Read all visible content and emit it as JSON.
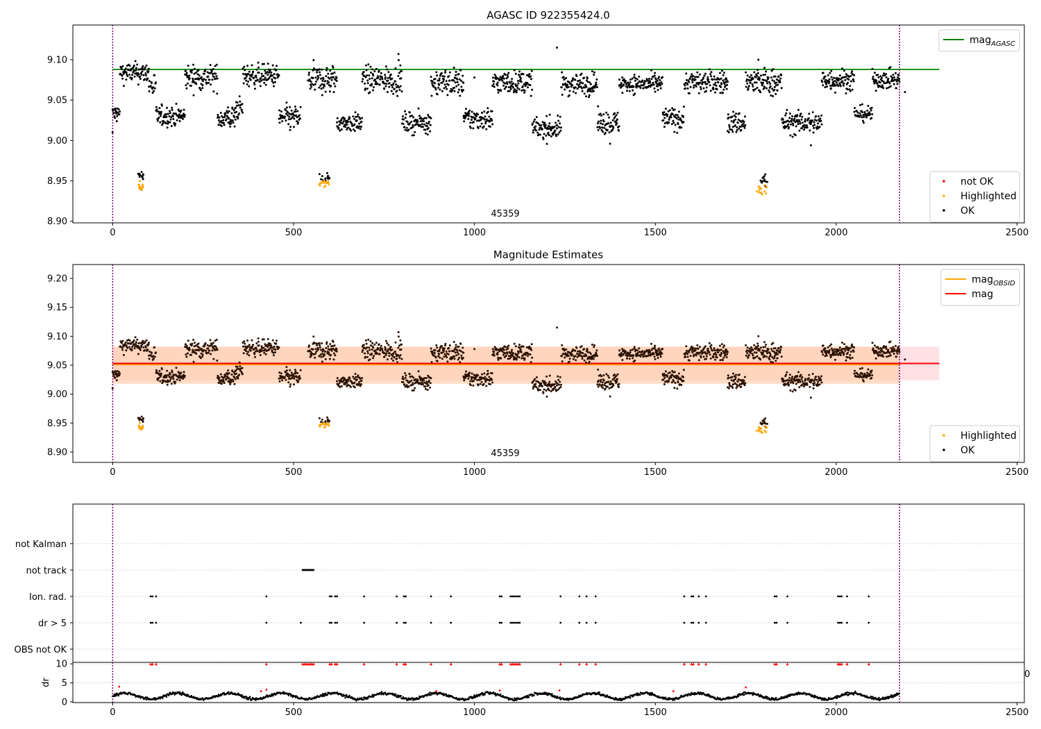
{
  "figure": {
    "panel1_title": "AGASC ID 922355424.0",
    "panel2_title": "Magnitude Estimates",
    "obsid_label": "45359"
  },
  "colors": {
    "ok": "#000000",
    "highlighted": "#ffa500",
    "not_ok": "#ff0000",
    "mag_agasc_line": "#008000",
    "mag_obsid_line": "#ffa500",
    "mag_line": "#ff0000",
    "band_mag": "#ffd6dc",
    "band_obsid": "#ffd2b0",
    "boundary": "#800080",
    "grid": "#b0b0b0"
  },
  "chart_data": [
    {
      "type": "scatter",
      "title": "AGASC ID 922355424.0",
      "xlim": [
        -110,
        2520
      ],
      "ylim": [
        8.898,
        9.143
      ],
      "xticks": [
        0,
        500,
        1000,
        1500,
        2000,
        2500
      ],
      "yticks": [
        8.9,
        8.95,
        9.0,
        9.05,
        9.1
      ],
      "ytick_labels": [
        "8.90",
        "8.95",
        "9.00",
        "9.05",
        "9.10"
      ],
      "hlines": [
        {
          "name": "mag_AGASC",
          "y": 9.088,
          "x": [
            0,
            2285
          ],
          "color": "#008000"
        }
      ],
      "vlines": [
        0,
        2175
      ],
      "annotation": {
        "text": "45359",
        "x": 1090,
        "y": 8.906
      },
      "legend_top": {
        "position": "upper right",
        "entries": [
          {
            "label": "mag",
            "sub": "AGASC",
            "kind": "line",
            "color": "#008000"
          }
        ]
      },
      "legend_bottom": {
        "position": "lower right",
        "entries": [
          {
            "label": "not OK",
            "kind": "dot",
            "color": "#ff0000"
          },
          {
            "label": "Highlighted",
            "kind": "dot",
            "color": "#ffa500"
          },
          {
            "label": "OK",
            "kind": "dot",
            "color": "#000000"
          }
        ]
      },
      "series": [
        {
          "label": "OK",
          "segments": [
            [
              0,
              20,
              9.033,
              0.008
            ],
            [
              20,
              100,
              9.084,
              0.009
            ],
            [
              100,
              120,
              9.068,
              0.012
            ],
            [
              120,
              200,
              9.03,
              0.009
            ],
            [
              200,
              290,
              9.078,
              0.011
            ],
            [
              290,
              340,
              9.028,
              0.011
            ],
            [
              340,
              360,
              9.04,
              0.01
            ],
            [
              360,
              460,
              9.08,
              0.01
            ],
            [
              460,
              520,
              9.028,
              0.011
            ],
            [
              540,
              620,
              9.075,
              0.013
            ],
            [
              620,
              690,
              9.022,
              0.008
            ],
            [
              690,
              800,
              9.075,
              0.012
            ],
            [
              800,
              880,
              9.022,
              0.009
            ],
            [
              880,
              970,
              9.072,
              0.012
            ],
            [
              970,
              1050,
              9.027,
              0.01
            ],
            [
              1050,
              1160,
              9.072,
              0.01
            ],
            [
              1160,
              1240,
              9.015,
              0.01
            ],
            [
              1240,
              1340,
              9.07,
              0.01
            ],
            [
              1340,
              1400,
              9.022,
              0.01
            ],
            [
              1400,
              1520,
              9.07,
              0.008
            ],
            [
              1520,
              1580,
              9.027,
              0.01
            ],
            [
              1580,
              1700,
              9.072,
              0.01
            ],
            [
              1700,
              1750,
              9.022,
              0.01
            ],
            [
              1750,
              1850,
              9.072,
              0.012
            ],
            [
              1850,
              1960,
              9.022,
              0.01
            ],
            [
              1960,
              2050,
              9.075,
              0.01
            ],
            [
              2050,
              2100,
              9.033,
              0.007
            ],
            [
              2100,
              2175,
              9.075,
              0.008
            ]
          ],
          "points": [
            [
              0,
              9.01
            ],
            [
              1228,
              9.115
            ],
            [
              1000,
              9.078
            ],
            [
              790,
              9.107
            ],
            [
              1930,
              8.994
            ],
            [
              1375,
              8.996
            ],
            [
              1785,
              9.1
            ],
            [
              2190,
              9.06
            ]
          ],
          "clusters": [
            [
              70,
              85,
              8.957,
              0.004
            ],
            [
              570,
              600,
              8.954,
              0.004
            ],
            [
              1790,
              1810,
              8.951,
              0.005
            ]
          ]
        },
        {
          "label": "Highlighted",
          "clusters": [
            [
              70,
              85,
              8.944,
              0.004
            ],
            [
              570,
              600,
              8.947,
              0.003
            ],
            [
              1780,
              1810,
              8.94,
              0.006
            ]
          ]
        }
      ]
    },
    {
      "type": "scatter",
      "title": "Magnitude Estimates",
      "xlim": [
        -110,
        2520
      ],
      "ylim": [
        8.882,
        9.224
      ],
      "xticks": [
        0,
        500,
        1000,
        1500,
        2000,
        2500
      ],
      "yticks": [
        8.9,
        8.95,
        9.0,
        9.05,
        9.1,
        9.15,
        9.2
      ],
      "ytick_labels": [
        "8.90",
        "8.95",
        "9.00",
        "9.05",
        "9.10",
        "9.15",
        "9.20"
      ],
      "hlines": [
        {
          "name": "mag_OBSID",
          "y": 9.051,
          "x": [
            0,
            2175
          ],
          "color": "#ffa500"
        },
        {
          "name": "mag",
          "y": 9.053,
          "x": [
            0,
            2285
          ],
          "color": "#ff0000"
        }
      ],
      "bands": [
        {
          "name": "mag",
          "y": [
            9.024,
            9.082
          ],
          "x": [
            0,
            2285
          ],
          "color": "#ffd6dc"
        },
        {
          "name": "mag_OBSID",
          "y": [
            9.018,
            9.082
          ],
          "x": [
            0,
            2175
          ],
          "color": "#ffd2b0"
        }
      ],
      "vlines": [
        0,
        2175
      ],
      "annotation": {
        "text": "45359",
        "x": 1090,
        "y": 8.892
      },
      "legend_top": {
        "position": "upper right",
        "entries": [
          {
            "label": "mag",
            "sub": "OBSID",
            "kind": "line",
            "color": "#ffa500"
          },
          {
            "label": "mag",
            "kind": "line",
            "color": "#ff0000"
          }
        ]
      },
      "legend_bottom": {
        "position": "lower right",
        "entries": [
          {
            "label": "Highlighted",
            "kind": "dot",
            "color": "#ffa500"
          },
          {
            "label": "OK",
            "kind": "dot",
            "color": "#000000"
          }
        ]
      }
    },
    {
      "type": "scatter",
      "title": "",
      "xlim": [
        -110,
        2520
      ],
      "ylim": [
        -0.5,
        5.5
      ],
      "categories": [
        "OBS not OK",
        "dr > 5",
        "Ion. rad.",
        "not track",
        "not Kalman"
      ],
      "vlines": [
        0,
        2175
      ],
      "rows": {
        "not track": [
          [
            525,
            555
          ]
        ],
        "Ion. rad.": [
          105,
          110,
          120,
          425,
          600,
          605,
          615,
          620,
          695,
          785,
          805,
          810,
          880,
          935,
          1070,
          1075,
          1100,
          1105,
          1110,
          1115,
          1120,
          1125,
          1238,
          1290,
          1310,
          1335,
          1580,
          1600,
          1605,
          1620,
          1640,
          1830,
          1835,
          1865,
          2005,
          2010,
          2015,
          2030,
          2090
        ],
        "dr > 5": [
          105,
          110,
          120,
          425,
          520,
          600,
          605,
          615,
          620,
          695,
          785,
          805,
          810,
          880,
          935,
          1070,
          1075,
          1100,
          1105,
          1110,
          1115,
          1120,
          1125,
          1238,
          1290,
          1310,
          1335,
          1580,
          1600,
          1605,
          1620,
          1640,
          1830,
          1835,
          1865,
          2005,
          2010,
          2015,
          2030,
          2090
        ]
      }
    },
    {
      "type": "scatter",
      "title": "",
      "ylabel": "dr",
      "xlim": [
        -110,
        2520
      ],
      "ylim": [
        -0.2,
        10.4
      ],
      "xticks": [
        0,
        500,
        1000,
        1500,
        2000,
        2500
      ],
      "yticks": [
        0,
        5,
        10
      ],
      "vlines": [
        0,
        2175
      ],
      "clipped_y": 10,
      "clipped_x": [
        105,
        110,
        120,
        425,
        525,
        530,
        535,
        540,
        545,
        550,
        555,
        600,
        605,
        615,
        620,
        695,
        785,
        805,
        810,
        880,
        935,
        1070,
        1075,
        1100,
        1105,
        1110,
        1115,
        1120,
        1125,
        1238,
        1290,
        1310,
        1335,
        1580,
        1600,
        1605,
        1620,
        1640,
        1830,
        1835,
        1865,
        2005,
        2010,
        2015,
        2030,
        2090
      ],
      "red_points": [
        [
          18,
          4.0
        ],
        [
          410,
          2.8
        ],
        [
          425,
          3.2
        ],
        [
          1070,
          3.0
        ],
        [
          1235,
          3.0
        ],
        [
          1550,
          2.8
        ],
        [
          1750,
          3.8
        ],
        [
          895,
          2.8
        ]
      ],
      "black_level": [
        1.5,
        1.0
      ]
    }
  ]
}
